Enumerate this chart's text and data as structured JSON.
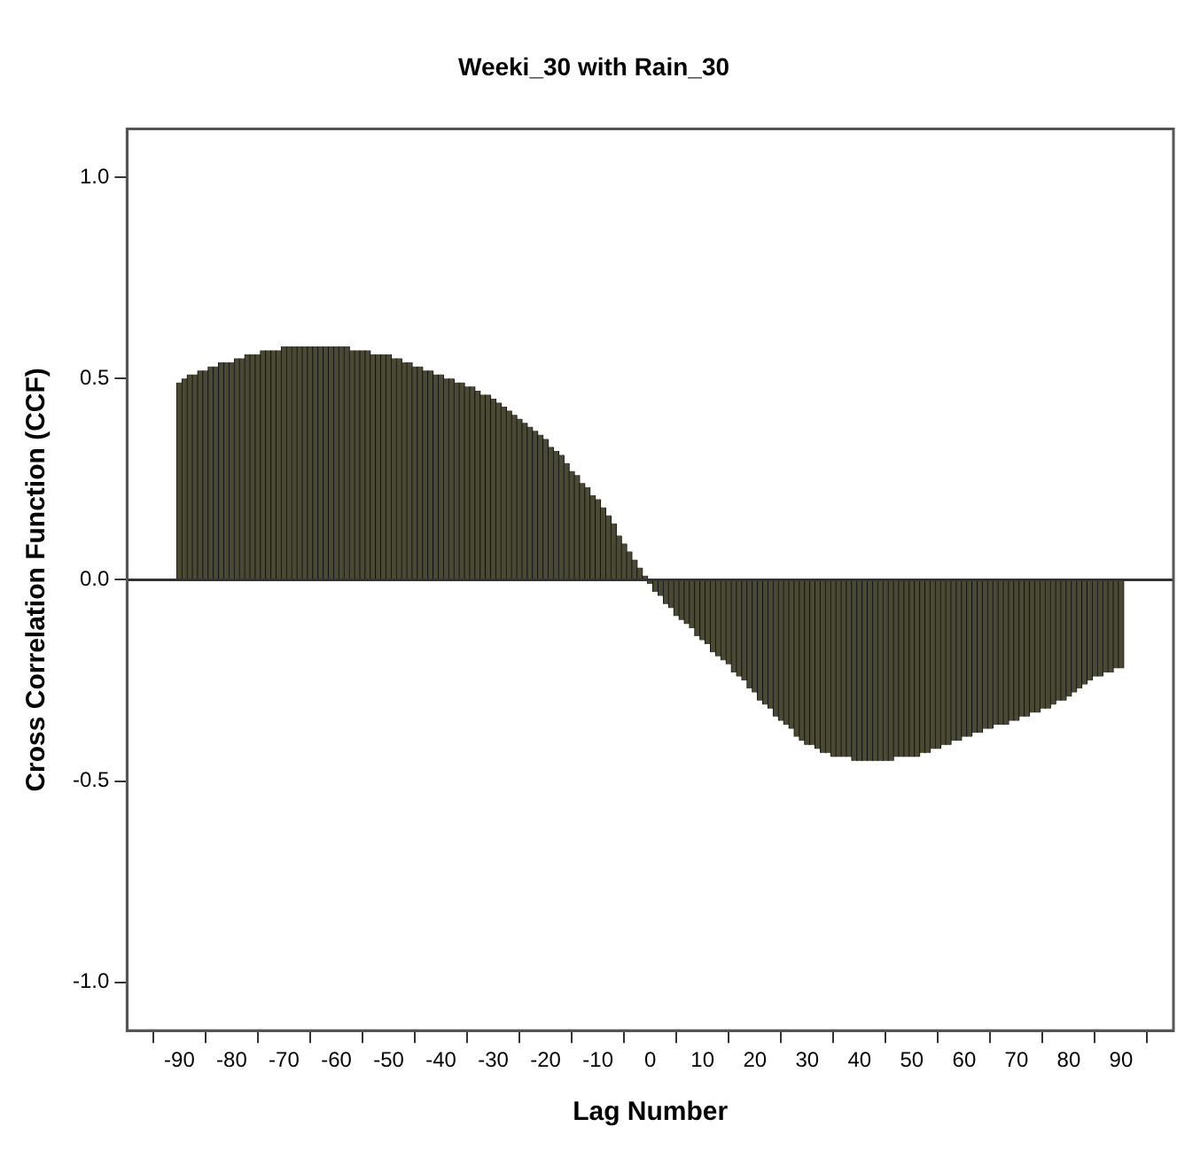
{
  "chart_data": {
    "type": "bar",
    "title": "Weeki_30 with Rain_30",
    "xlabel": "Lag Number",
    "ylabel": "Cross Correlation Function (CCF)",
    "x": [
      -90,
      -89,
      -88,
      -87,
      -86,
      -85,
      -84,
      -83,
      -82,
      -81,
      -80,
      -79,
      -78,
      -77,
      -76,
      -75,
      -74,
      -73,
      -72,
      -71,
      -70,
      -69,
      -68,
      -67,
      -66,
      -65,
      -64,
      -63,
      -62,
      -61,
      -60,
      -59,
      -58,
      -57,
      -56,
      -55,
      -54,
      -53,
      -52,
      -51,
      -50,
      -49,
      -48,
      -47,
      -46,
      -45,
      -44,
      -43,
      -42,
      -41,
      -40,
      -39,
      -38,
      -37,
      -36,
      -35,
      -34,
      -33,
      -32,
      -31,
      -30,
      -29,
      -28,
      -27,
      -26,
      -25,
      -24,
      -23,
      -22,
      -21,
      -20,
      -19,
      -18,
      -17,
      -16,
      -15,
      -14,
      -13,
      -12,
      -11,
      -10,
      -9,
      -8,
      -7,
      -6,
      -5,
      -4,
      -3,
      -2,
      -1,
      0,
      1,
      2,
      3,
      4,
      5,
      6,
      7,
      8,
      9,
      10,
      11,
      12,
      13,
      14,
      15,
      16,
      17,
      18,
      19,
      20,
      21,
      22,
      23,
      24,
      25,
      26,
      27,
      28,
      29,
      30,
      31,
      32,
      33,
      34,
      35,
      36,
      37,
      38,
      39,
      40,
      41,
      42,
      43,
      44,
      45,
      46,
      47,
      48,
      49,
      50,
      51,
      52,
      53,
      54,
      55,
      56,
      57,
      58,
      59,
      60,
      61,
      62,
      63,
      64,
      65,
      66,
      67,
      68,
      69,
      70,
      71,
      72,
      73,
      74,
      75,
      76,
      77,
      78,
      79,
      80,
      81,
      82,
      83,
      84,
      85,
      86,
      87,
      88,
      89,
      90
    ],
    "values": [
      0.49,
      0.5,
      0.51,
      0.51,
      0.52,
      0.52,
      0.53,
      0.53,
      0.54,
      0.54,
      0.54,
      0.55,
      0.55,
      0.56,
      0.56,
      0.56,
      0.57,
      0.57,
      0.57,
      0.57,
      0.58,
      0.58,
      0.58,
      0.58,
      0.58,
      0.58,
      0.58,
      0.58,
      0.58,
      0.58,
      0.58,
      0.58,
      0.58,
      0.57,
      0.57,
      0.57,
      0.57,
      0.56,
      0.56,
      0.56,
      0.56,
      0.55,
      0.55,
      0.54,
      0.54,
      0.53,
      0.53,
      0.52,
      0.52,
      0.51,
      0.51,
      0.5,
      0.5,
      0.49,
      0.49,
      0.48,
      0.48,
      0.47,
      0.46,
      0.46,
      0.45,
      0.44,
      0.43,
      0.42,
      0.41,
      0.4,
      0.39,
      0.38,
      0.37,
      0.36,
      0.35,
      0.33,
      0.32,
      0.31,
      0.29,
      0.27,
      0.26,
      0.24,
      0.23,
      0.21,
      0.2,
      0.18,
      0.16,
      0.14,
      0.11,
      0.09,
      0.07,
      0.05,
      0.03,
      0.01,
      -0.01,
      -0.03,
      -0.04,
      -0.06,
      -0.07,
      -0.09,
      -0.1,
      -0.11,
      -0.12,
      -0.14,
      -0.15,
      -0.16,
      -0.18,
      -0.19,
      -0.2,
      -0.21,
      -0.23,
      -0.24,
      -0.25,
      -0.27,
      -0.28,
      -0.3,
      -0.31,
      -0.32,
      -0.34,
      -0.35,
      -0.36,
      -0.37,
      -0.39,
      -0.4,
      -0.41,
      -0.41,
      -0.42,
      -0.43,
      -0.43,
      -0.44,
      -0.44,
      -0.44,
      -0.44,
      -0.45,
      -0.45,
      -0.45,
      -0.45,
      -0.45,
      -0.45,
      -0.45,
      -0.45,
      -0.44,
      -0.44,
      -0.44,
      -0.44,
      -0.44,
      -0.43,
      -0.43,
      -0.42,
      -0.42,
      -0.41,
      -0.41,
      -0.4,
      -0.4,
      -0.39,
      -0.39,
      -0.38,
      -0.38,
      -0.37,
      -0.37,
      -0.36,
      -0.36,
      -0.36,
      -0.35,
      -0.35,
      -0.34,
      -0.34,
      -0.33,
      -0.33,
      -0.32,
      -0.32,
      -0.31,
      -0.3,
      -0.3,
      -0.29,
      -0.28,
      -0.27,
      -0.26,
      -0.25,
      -0.24,
      -0.24,
      -0.23,
      -0.23,
      -0.22,
      -0.22
    ],
    "color": "#4a4935",
    "xlim": [
      -100,
      100
    ],
    "xticks": [
      -90,
      -80,
      -70,
      -60,
      -50,
      -40,
      -30,
      -20,
      -10,
      0,
      10,
      20,
      30,
      40,
      50,
      60,
      70,
      80,
      90
    ],
    "ylim": [
      -1.12,
      1.12
    ],
    "yticks": [
      {
        "value": -1,
        "label": "-1.0"
      },
      {
        "value": -0.5,
        "label": "-0.5"
      },
      {
        "value": 0,
        "label": "0.0"
      },
      {
        "value": 0.5,
        "label": "0.5"
      },
      {
        "value": 1,
        "label": "1.0"
      }
    ],
    "ref_lines": [
      {
        "axis": "y",
        "value": 0,
        "color": "#333333"
      }
    ],
    "grid": false,
    "legend": false
  }
}
